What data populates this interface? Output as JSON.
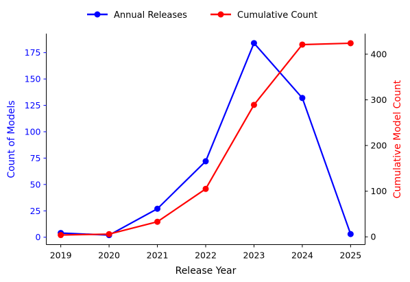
{
  "chart_data": {
    "type": "line",
    "x": [
      2019,
      2020,
      2021,
      2022,
      2023,
      2024,
      2025
    ],
    "series": [
      {
        "name": "Annual Releases",
        "axis": "left",
        "color": "#0000ff",
        "values": [
          4,
          2,
          27,
          72,
          184,
          132,
          3
        ]
      },
      {
        "name": "Cumulative Count",
        "axis": "right",
        "color": "#ff0000",
        "values": [
          4,
          6,
          33,
          105,
          289,
          421,
          424
        ]
      }
    ],
    "xlabel": "Release Year",
    "ylabel_left": "Count of Models",
    "ylabel_right": "Cumulative Model Count",
    "xlim": [
      2018.7,
      2025.3
    ],
    "ylim_left": [
      -7,
      193
    ],
    "ylim_right": [
      -17,
      445
    ],
    "yticks_left": [
      0,
      25,
      50,
      75,
      100,
      125,
      150,
      175
    ],
    "yticks_right": [
      0,
      100,
      200,
      300,
      400
    ],
    "xticks": [
      2019,
      2020,
      2021,
      2022,
      2023,
      2024,
      2025
    ],
    "grid": false,
    "legend_position": "top-center"
  }
}
